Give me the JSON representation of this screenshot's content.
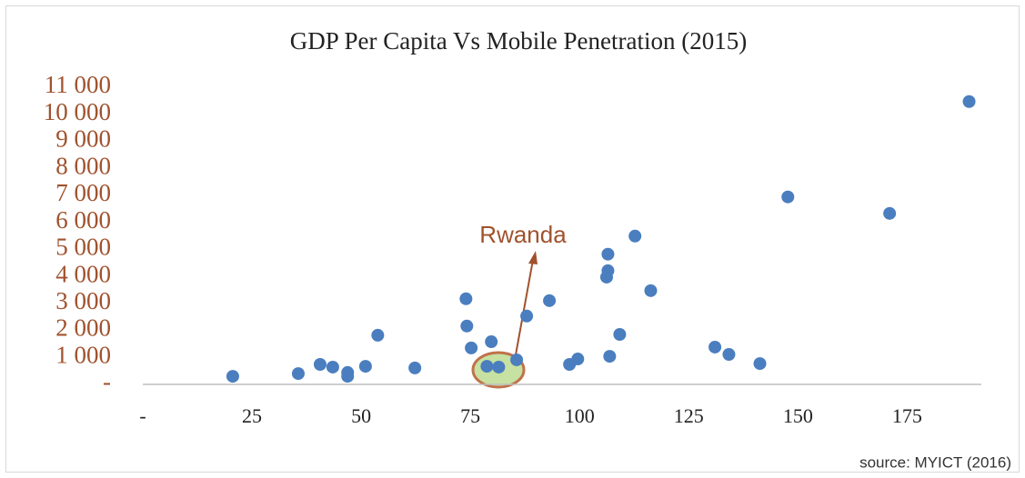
{
  "chart_data": {
    "type": "scatter",
    "title": "GDP Per Capita Vs Mobile Penetration (2015)",
    "annotation": "Rwanda",
    "source": "source: MYICT (2016)",
    "color": "#4a7ebf",
    "xlim": [
      0,
      192
    ],
    "xticks": [
      {
        "value": 0,
        "label": "-"
      },
      25,
      50,
      75,
      100,
      125,
      150,
      175
    ],
    "ylim": [
      0,
      11000
    ],
    "yticks": [
      {
        "value": 0,
        "label": "-"
      },
      {
        "value": 1000,
        "label": "1 000"
      },
      {
        "value": 2000,
        "label": "2 000"
      },
      {
        "value": 3000,
        "label": "3 000"
      },
      {
        "value": 4000,
        "label": "4 000"
      },
      {
        "value": 5000,
        "label": "5 000"
      },
      {
        "value": 6000,
        "label": "6 000"
      },
      {
        "value": 7000,
        "label": "7 000"
      },
      {
        "value": 8000,
        "label": "8 000"
      },
      {
        "value": 9000,
        "label": "9 000"
      },
      {
        "value": 10000,
        "label": "10 000"
      },
      {
        "value": 11000,
        "label": "11 000"
      }
    ],
    "x": [
      20.6,
      35.6,
      40.6,
      43.5,
      46.9,
      46.9,
      51,
      53.8,
      62.3,
      74,
      74.2,
      75.2,
      78.8,
      79.8,
      81.5,
      85.6,
      87.9,
      93.1,
      97.7,
      99.6,
      106.2,
      106.5,
      106.5,
      106.9,
      109.2,
      112.7,
      116.3,
      131,
      134.2,
      141.3,
      147.7,
      171,
      189.2
    ],
    "values": [
      300,
      400,
      740,
      640,
      440,
      300,
      670,
      1820,
      610,
      3170,
      2160,
      1350,
      670,
      1580,
      640,
      910,
      2530,
      3100,
      740,
      940,
      3970,
      4210,
      4820,
      1040,
      1850,
      5490,
      3470,
      1380,
      1110,
      770,
      6940,
      6330,
      10470
    ]
  }
}
